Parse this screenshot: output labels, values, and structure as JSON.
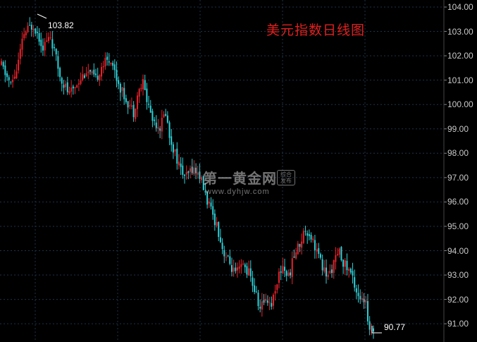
{
  "title": "美元指数日线图",
  "watermark": {
    "main": "第一黄金网",
    "url": "www.dyhjw.com",
    "badge": "综合发布"
  },
  "colors": {
    "up": "#e8232b",
    "down": "#2fd0d6",
    "grid": "#1e3246",
    "axis_text": "#c8c8c8",
    "title": "#e0201e"
  },
  "chart_data": {
    "type": "candlestick",
    "title": "美元指数日线图",
    "ylim": [
      90.5,
      104.1
    ],
    "y_ticks": [
      "104.00",
      "103.00",
      "102.00",
      "101.00",
      "100.00",
      "99.00",
      "98.00",
      "97.00",
      "96.00",
      "95.00",
      "94.00",
      "93.00",
      "92.00",
      "91.00"
    ],
    "grid": true,
    "annotations": [
      {
        "label": "103.82",
        "kind": "high"
      },
      {
        "label": "90.77",
        "kind": "low"
      }
    ],
    "waypoints": [
      [
        0,
        101.6
      ],
      [
        5,
        100.8
      ],
      [
        8,
        101.4
      ],
      [
        12,
        102.9
      ],
      [
        17,
        103.3
      ],
      [
        22,
        102.4
      ],
      [
        26,
        102.8
      ],
      [
        31,
        101.2
      ],
      [
        36,
        100.4
      ],
      [
        40,
        100.9
      ],
      [
        45,
        101.4
      ],
      [
        50,
        101.0
      ],
      [
        53,
        101.6
      ],
      [
        58,
        101.9
      ],
      [
        61,
        101.1
      ],
      [
        64,
        100.5
      ],
      [
        67,
        100.1
      ],
      [
        70,
        99.7
      ],
      [
        72,
        100.4
      ],
      [
        75,
        100.9
      ],
      [
        77,
        100.2
      ],
      [
        80,
        99.4
      ],
      [
        84,
        99.1
      ],
      [
        87,
        99.7
      ],
      [
        89,
        98.7
      ],
      [
        92,
        98.0
      ],
      [
        95,
        97.3
      ],
      [
        98,
        97.0
      ],
      [
        101,
        97.4
      ],
      [
        105,
        97.1
      ],
      [
        108,
        96.3
      ],
      [
        111,
        95.6
      ],
      [
        114,
        95.1
      ],
      [
        117,
        94.1
      ],
      [
        120,
        93.6
      ],
      [
        124,
        93.0
      ],
      [
        128,
        93.4
      ],
      [
        131,
        93.1
      ],
      [
        134,
        92.4
      ],
      [
        137,
        91.6
      ],
      [
        140,
        92.1
      ],
      [
        143,
        91.8
      ],
      [
        146,
        92.8
      ],
      [
        149,
        93.4
      ],
      [
        152,
        92.9
      ],
      [
        155,
        93.8
      ],
      [
        158,
        94.3
      ],
      [
        161,
        94.9
      ],
      [
        164,
        94.6
      ],
      [
        167,
        94.0
      ],
      [
        170,
        93.3
      ],
      [
        173,
        92.9
      ],
      [
        176,
        93.5
      ],
      [
        179,
        93.9
      ],
      [
        182,
        93.4
      ],
      [
        185,
        93.1
      ],
      [
        188,
        92.4
      ],
      [
        191,
        91.9
      ],
      [
        193,
        91.8
      ],
      [
        194,
        90.9
      ],
      [
        197,
        90.8
      ]
    ]
  }
}
